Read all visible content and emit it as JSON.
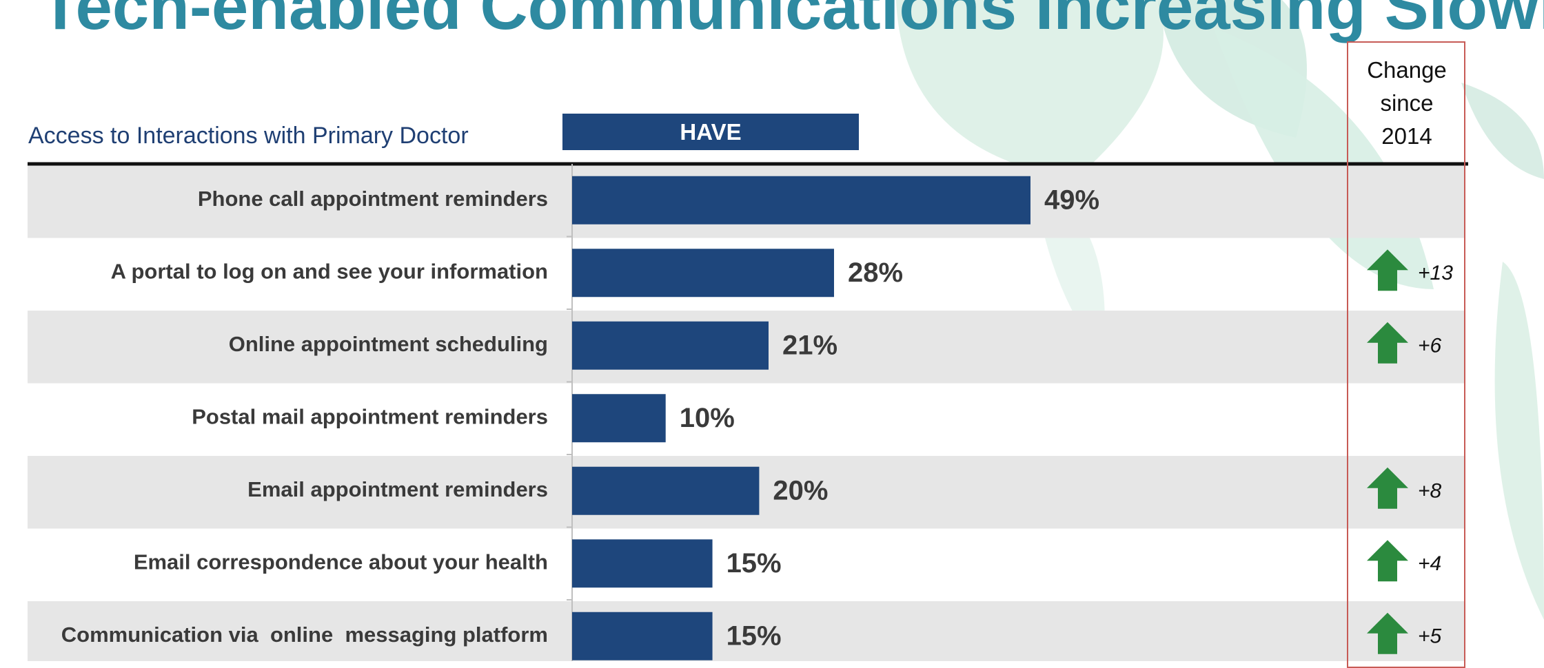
{
  "slide": {
    "title": "Tech-enabled Communications Increasing Slowly"
  },
  "chart_data": {
    "type": "bar",
    "orientation": "horizontal",
    "title": "Access to Interactions with Primary Doctor",
    "series": [
      {
        "name": "HAVE",
        "values": [
          49,
          28,
          21,
          10,
          20,
          15,
          15
        ],
        "value_labels": [
          "49%",
          "28%",
          "21%",
          "10%",
          "20%",
          "15%",
          "15%"
        ],
        "color": "#1e467c"
      }
    ],
    "categories": [
      "Phone call appointment reminders",
      "A portal to log on and see your information",
      "Online appointment scheduling",
      "Postal mail appointment reminders",
      "Email appointment reminders",
      "Email correspondence about your health",
      "Communication via  online  messaging platform"
    ],
    "xlim": [
      0,
      70
    ],
    "grid": false,
    "legend": "none",
    "change_column": {
      "header": "Change\nsince\n2014",
      "labels": [
        "",
        "+13",
        "+6",
        "",
        "+8",
        "+4",
        "+5"
      ],
      "values": [
        null,
        13,
        6,
        null,
        8,
        4,
        5
      ],
      "icon": "up-arrow-icon",
      "icon_color": "#2b8a3e"
    },
    "row_band_color": "#e6e6e6",
    "frame_color": "#c75a55"
  }
}
